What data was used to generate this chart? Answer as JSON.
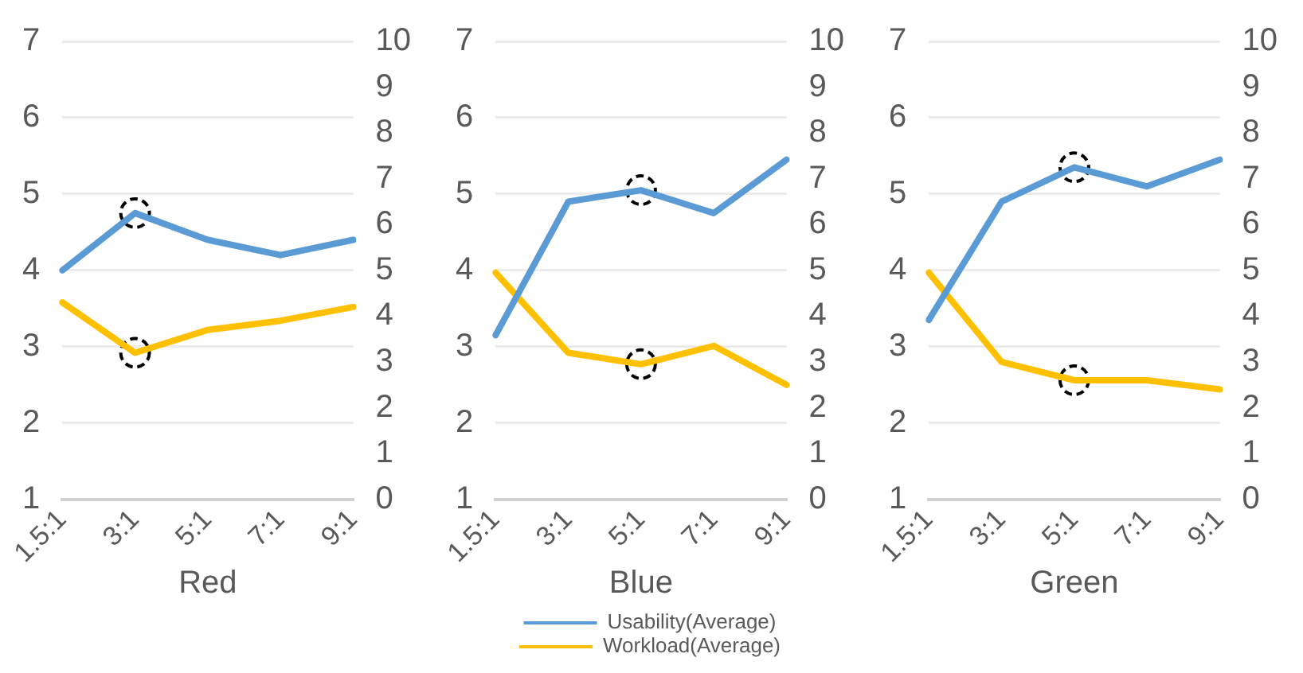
{
  "chart_data": [
    {
      "type": "line",
      "xlabel": "Red",
      "categories": [
        "1.5:1",
        "3:1",
        "5:1",
        "7:1",
        "9:1"
      ],
      "ylim": [
        1,
        7
      ],
      "yticks": [
        1,
        2,
        3,
        4,
        5,
        6,
        7
      ],
      "y2lim": [
        0,
        10
      ],
      "y2ticks": [
        0,
        1,
        2,
        3,
        4,
        5,
        6,
        7,
        8,
        9,
        10
      ],
      "grid": "y",
      "legend": false,
      "series": [
        {
          "color": "#5b9bd5",
          "values": [
            4.0,
            4.75,
            4.4,
            4.2,
            4.4
          ]
        },
        {
          "color": "#ffc000",
          "axis": "y2",
          "values": [
            4.3,
            3.2,
            3.7,
            3.9,
            4.2
          ]
        },
        {
          "type": "scatter",
          "marker": "circle",
          "line_style": "dashed",
          "color": "#000000",
          "x": [
            "3:1"
          ],
          "values": [
            4.75
          ]
        },
        {
          "type": "scatter",
          "marker": "circle",
          "line_style": "dashed",
          "color": "#000000",
          "axis": "y2",
          "x": [
            "3:1"
          ],
          "values": [
            3.2
          ]
        }
      ]
    },
    {
      "type": "line",
      "xlabel": "Blue",
      "categories": [
        "1.5:1",
        "3:1",
        "5:1",
        "7:1",
        "9:1"
      ],
      "ylim": [
        1,
        7
      ],
      "yticks": [
        1,
        2,
        3,
        4,
        5,
        6,
        7
      ],
      "y2lim": [
        0,
        10
      ],
      "y2ticks": [
        0,
        1,
        2,
        3,
        4,
        5,
        6,
        7,
        8,
        9,
        10
      ],
      "grid": "y",
      "legend": "bottom",
      "series": [
        {
          "name": "Usability(Average)",
          "color": "#5b9bd5",
          "values": [
            3.15,
            4.9,
            5.05,
            4.75,
            5.45
          ]
        },
        {
          "name": "Workload(Average)",
          "color": "#ffc000",
          "axis": "y2",
          "values": [
            4.95,
            3.2,
            2.95,
            3.35,
            2.5
          ]
        },
        {
          "type": "scatter",
          "marker": "circle",
          "line_style": "dashed",
          "color": "#000000",
          "x": [
            "5:1"
          ],
          "values": [
            5.05
          ]
        },
        {
          "type": "scatter",
          "marker": "circle",
          "line_style": "dashed",
          "color": "#000000",
          "axis": "y2",
          "x": [
            "5:1"
          ],
          "values": [
            2.95
          ]
        }
      ]
    },
    {
      "type": "line",
      "xlabel": "Green",
      "categories": [
        "1.5:1",
        "3:1",
        "5:1",
        "7:1",
        "9:1"
      ],
      "ylim": [
        1,
        7
      ],
      "yticks": [
        1,
        2,
        3,
        4,
        5,
        6,
        7
      ],
      "y2lim": [
        0,
        10
      ],
      "y2ticks": [
        0,
        1,
        2,
        3,
        4,
        5,
        6,
        7,
        8,
        9,
        10
      ],
      "grid": "y",
      "legend": false,
      "series": [
        {
          "color": "#5b9bd5",
          "values": [
            3.35,
            4.9,
            5.35,
            5.1,
            5.45
          ]
        },
        {
          "color": "#ffc000",
          "axis": "y2",
          "values": [
            4.95,
            3.0,
            2.6,
            2.6,
            2.4
          ]
        },
        {
          "type": "scatter",
          "marker": "circle",
          "line_style": "dashed",
          "color": "#000000",
          "x": [
            "5:1"
          ],
          "values": [
            5.35
          ]
        },
        {
          "type": "scatter",
          "marker": "circle",
          "line_style": "dashed",
          "color": "#000000",
          "axis": "y2",
          "x": [
            "5:1"
          ],
          "values": [
            2.6
          ]
        }
      ]
    }
  ]
}
